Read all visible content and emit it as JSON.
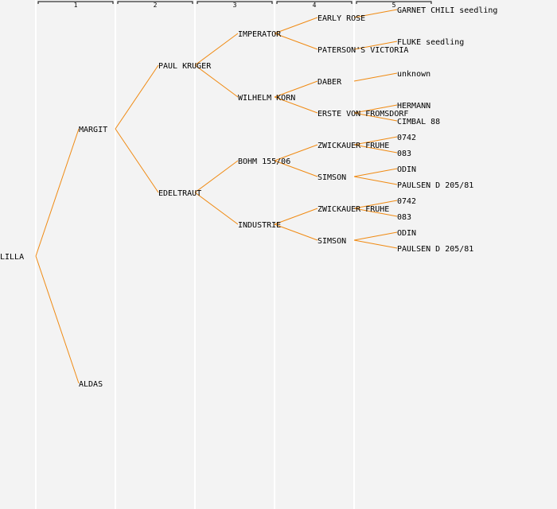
{
  "colors": {
    "background": "#f3f3f3",
    "edge": "#f08a12",
    "guide": "#ffffff",
    "text": "#000000"
  },
  "generations": [
    "1",
    "2",
    "3",
    "4",
    "5"
  ],
  "tree": {
    "name": "LILLA",
    "children": [
      {
        "name": "MARGIT",
        "children": [
          {
            "name": "PAUL KRUGER",
            "children": [
              {
                "name": "IMPERATOR",
                "children": [
                  {
                    "name": "EARLY ROSE",
                    "children": [
                      {
                        "name": "GARNET CHILI seedling"
                      }
                    ]
                  },
                  {
                    "name": "PATERSON'S VICTORIA",
                    "children": [
                      {
                        "name": "FLUKE seedling"
                      }
                    ]
                  }
                ]
              },
              {
                "name": "WILHELM KORN",
                "children": [
                  {
                    "name": "DABER",
                    "children": [
                      {
                        "name": "unknown"
                      }
                    ]
                  },
                  {
                    "name": "ERSTE VON FROMSDORF",
                    "children": [
                      {
                        "name": "HERMANN"
                      },
                      {
                        "name": "CIMBAL 88"
                      }
                    ]
                  }
                ]
              }
            ]
          },
          {
            "name": "EDELTRAUT",
            "children": [
              {
                "name": "BOHM 155/06",
                "children": [
                  {
                    "name": "ZWICKAUER FRUHE",
                    "children": [
                      {
                        "name": "0742"
                      },
                      {
                        "name": "083"
                      }
                    ]
                  },
                  {
                    "name": "SIMSON",
                    "children": [
                      {
                        "name": "ODIN"
                      },
                      {
                        "name": "PAULSEN D 205/81"
                      }
                    ]
                  }
                ]
              },
              {
                "name": "INDUSTRIE",
                "children": [
                  {
                    "name": "ZWICKAUER FRUHE",
                    "children": [
                      {
                        "name": "0742"
                      },
                      {
                        "name": "083"
                      }
                    ]
                  },
                  {
                    "name": "SIMSON",
                    "children": [
                      {
                        "name": "ODIN"
                      },
                      {
                        "name": "PAULSEN D 205/81"
                      }
                    ]
                  }
                ]
              }
            ]
          }
        ]
      },
      {
        "name": "ALDAS"
      }
    ]
  }
}
